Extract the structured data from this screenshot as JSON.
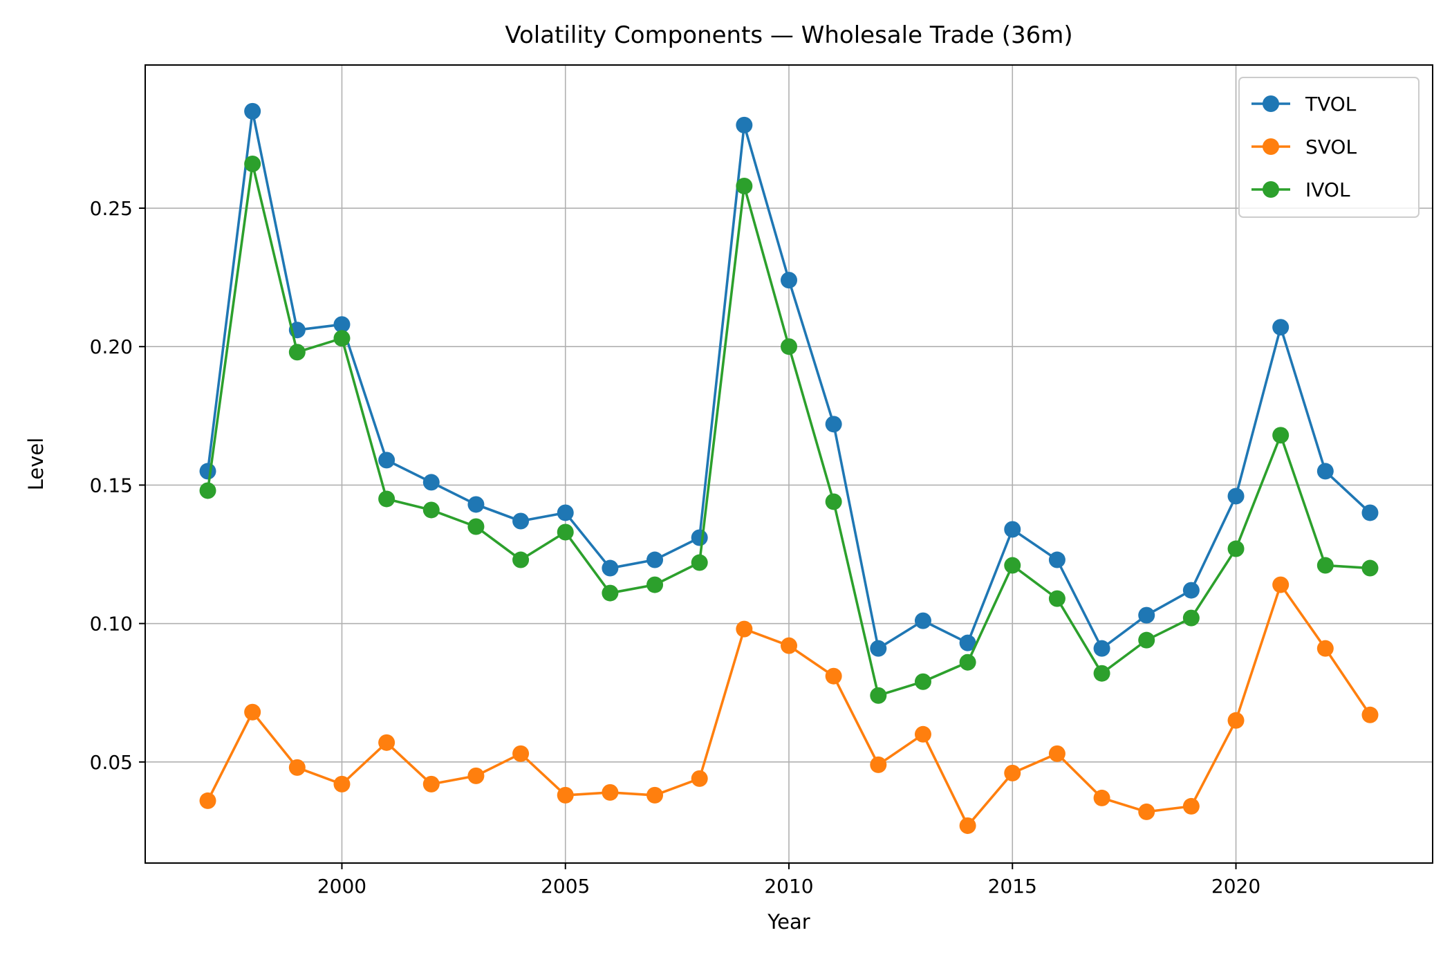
{
  "chart_data": {
    "type": "line",
    "title": "Volatility Components — Wholesale Trade (36m)",
    "xlabel": "Year",
    "ylabel": "Level",
    "xlim": [
      1995.6,
      2024.4
    ],
    "ylim": [
      0.0135,
      0.3017
    ],
    "xticks": [
      2000,
      2005,
      2010,
      2015,
      2020
    ],
    "yticks": [
      0.05,
      0.1,
      0.15,
      0.2,
      0.25
    ],
    "xtick_labels": [
      "2000",
      "2005",
      "2010",
      "2015",
      "2020"
    ],
    "ytick_labels": [
      "0.05",
      "0.10",
      "0.15",
      "0.20",
      "0.25"
    ],
    "grid": true,
    "legend_position": "top-right",
    "x": [
      1997,
      1998,
      1999,
      2000,
      2001,
      2002,
      2003,
      2004,
      2005,
      2006,
      2007,
      2008,
      2009,
      2010,
      2011,
      2012,
      2013,
      2014,
      2015,
      2016,
      2017,
      2018,
      2019,
      2020,
      2021,
      2022,
      2023
    ],
    "series": [
      {
        "name": "TVOL",
        "color": "#1f77b4",
        "values": [
          0.155,
          0.285,
          0.206,
          0.208,
          0.159,
          0.151,
          0.143,
          0.137,
          0.14,
          0.12,
          0.123,
          0.131,
          0.28,
          0.224,
          0.172,
          0.091,
          0.101,
          0.093,
          0.134,
          0.123,
          0.091,
          0.103,
          0.112,
          0.146,
          0.207,
          0.155,
          0.14
        ]
      },
      {
        "name": "SVOL",
        "color": "#ff7f0e",
        "values": [
          0.036,
          0.068,
          0.048,
          0.042,
          0.057,
          0.042,
          0.045,
          0.053,
          0.038,
          0.039,
          0.038,
          0.044,
          0.098,
          0.092,
          0.081,
          0.049,
          0.06,
          0.027,
          0.046,
          0.053,
          0.037,
          0.032,
          0.034,
          0.065,
          0.114,
          0.091,
          0.067
        ]
      },
      {
        "name": "IVOL",
        "color": "#2ca02c",
        "values": [
          0.148,
          0.266,
          0.198,
          0.203,
          0.145,
          0.141,
          0.135,
          0.123,
          0.133,
          0.111,
          0.114,
          0.122,
          0.258,
          0.2,
          0.144,
          0.074,
          0.079,
          0.086,
          0.121,
          0.109,
          0.082,
          0.094,
          0.102,
          0.127,
          0.168,
          0.121,
          0.12
        ]
      }
    ]
  }
}
